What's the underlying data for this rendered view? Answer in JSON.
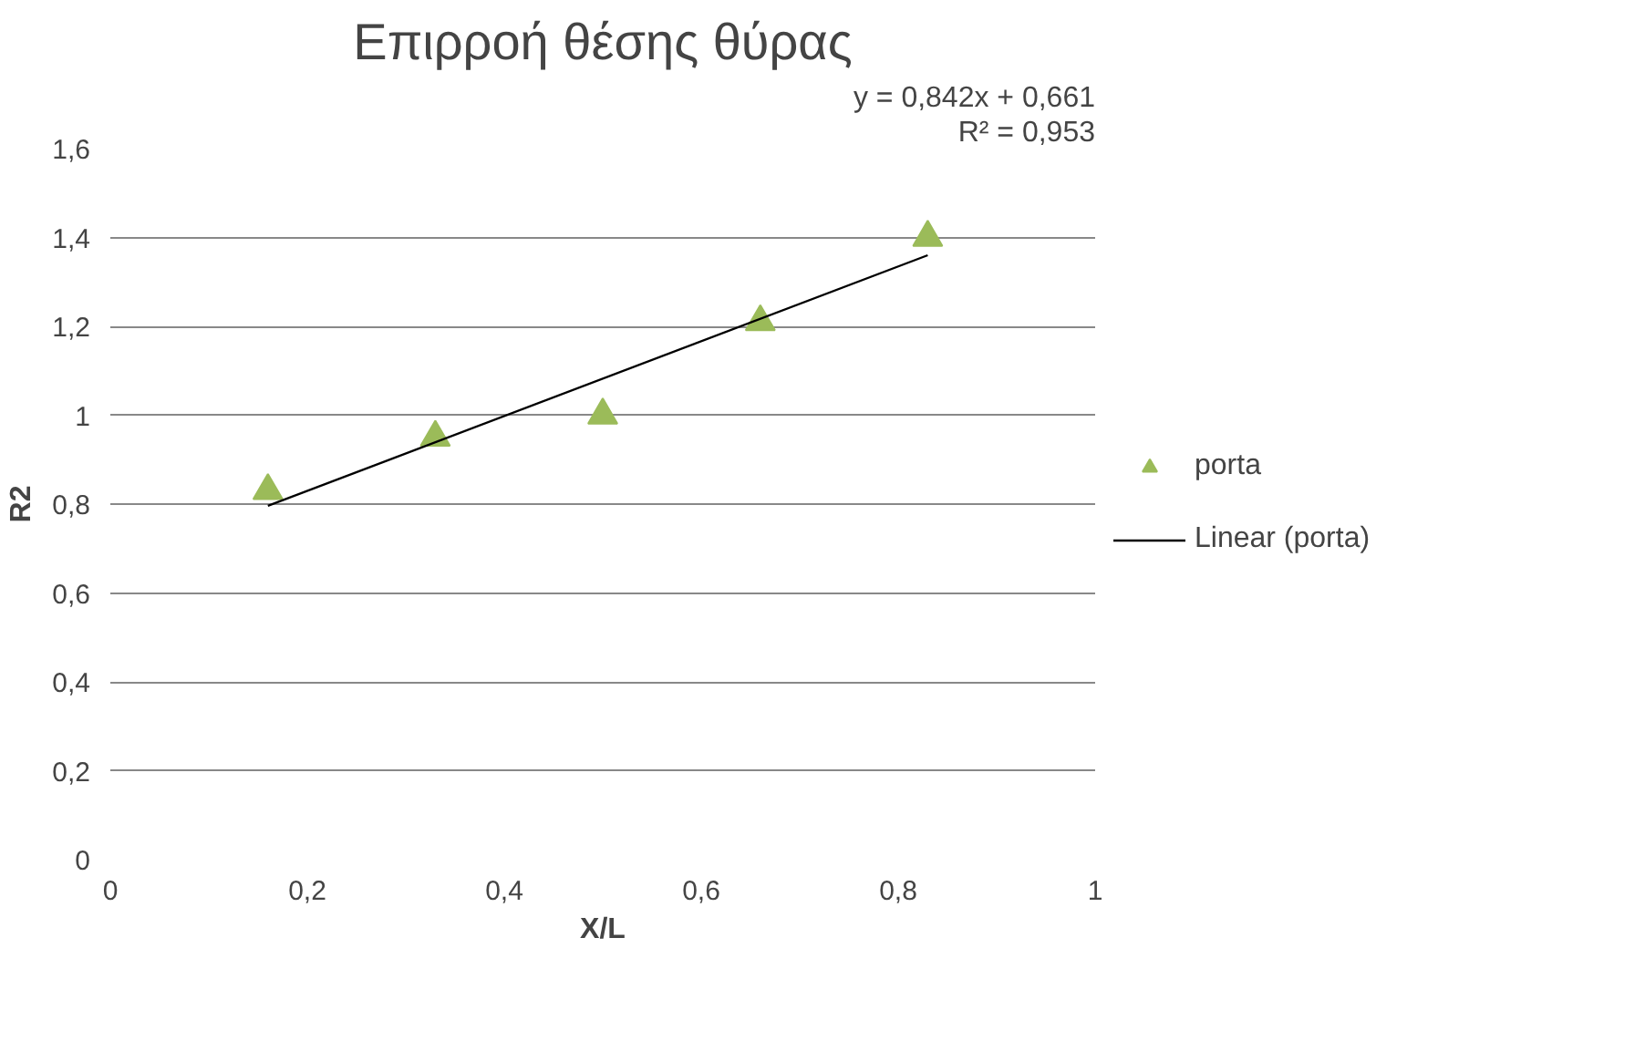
{
  "chart_data": {
    "type": "scatter",
    "title": "Επιρροή θέσης θύρας",
    "xlabel": "X/L",
    "ylabel": "R2",
    "x": [
      0.16,
      0.33,
      0.5,
      0.66,
      0.83
    ],
    "series": [
      {
        "name": "porta",
        "color": "#9bbb59",
        "values": [
          0.83,
          0.95,
          1.0,
          1.21,
          1.4
        ],
        "marker": "triangle"
      },
      {
        "name": "Linear (porta)",
        "type": "line",
        "color": "#000000",
        "x": [
          0.16,
          0.83
        ],
        "values": [
          0.796,
          1.36
        ],
        "marker": "none"
      }
    ],
    "xlim": [
      0,
      1
    ],
    "xticks": [
      0,
      {
        "value": 0.2,
        "label": "0,2"
      },
      {
        "value": 0.4,
        "label": "0,4"
      },
      {
        "value": 0.6,
        "label": "0,6"
      },
      {
        "value": 0.8,
        "label": "0,8"
      },
      1
    ],
    "ylim": [
      0,
      1.6
    ],
    "yticks": [
      0,
      {
        "value": 0.2,
        "label": "0,2"
      },
      {
        "value": 0.4,
        "label": "0,4"
      },
      {
        "value": 0.6,
        "label": "0,6"
      },
      {
        "value": 0.8,
        "label": "0,8"
      },
      1,
      {
        "value": 1.2,
        "label": "1,2"
      },
      {
        "value": 1.4,
        "label": "1,4"
      },
      {
        "value": 1.6,
        "label": "1,6"
      }
    ],
    "grid": "y",
    "legend": "right",
    "annotations": [
      "y = 0,842x + 0,661",
      "R² = 0,953"
    ]
  }
}
